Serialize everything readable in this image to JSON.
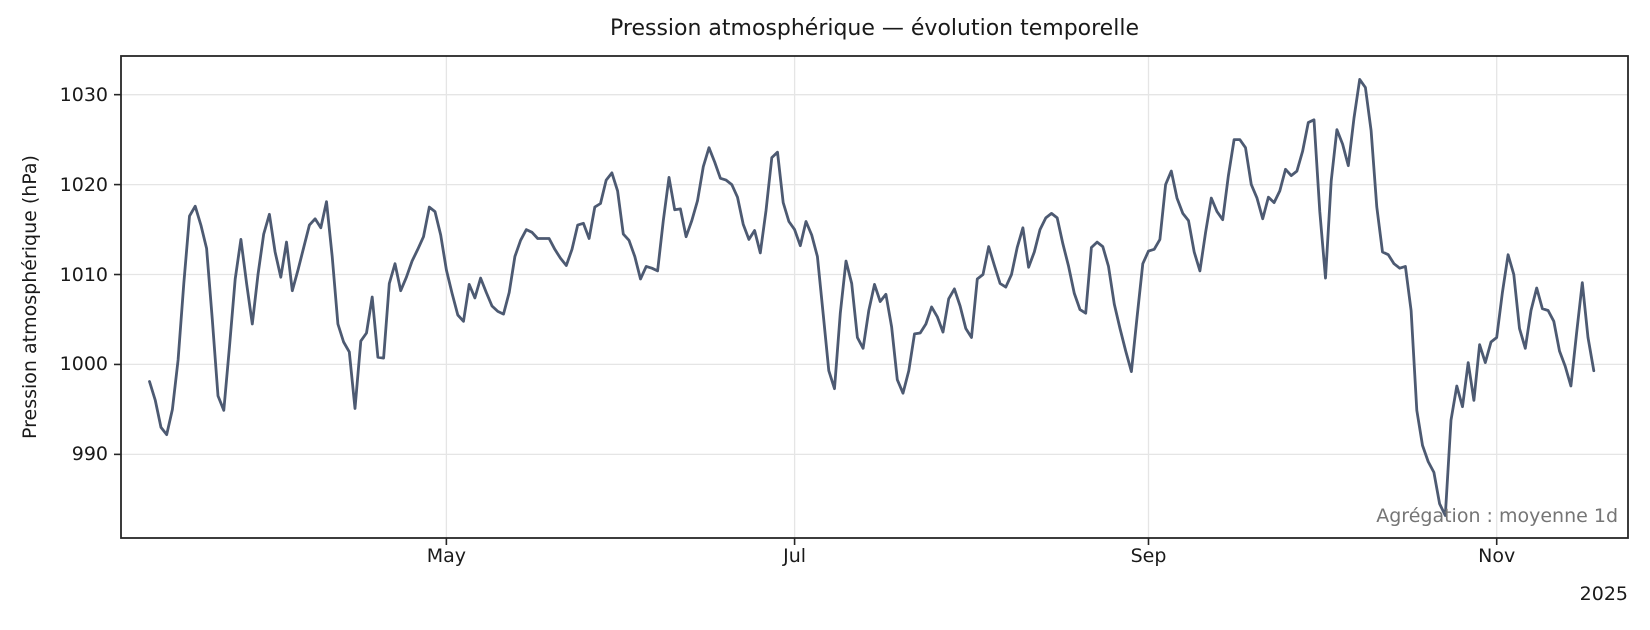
{
  "chart_data": {
    "type": "line",
    "title": "Pression atmosphérique — évolution temporelle",
    "ylabel": "Pression atmosphérique (hPa)",
    "xlabel": "",
    "annotation": "Agrégation : moyenne 1d",
    "year_label": "2025",
    "grid": true,
    "legend": false,
    "x_domain": [
      "2025-03-05",
      "2025-11-24"
    ],
    "y_domain": [
      980.7,
      1034.3
    ],
    "x_ticks": [
      {
        "label": "May",
        "date": "2025-05-01"
      },
      {
        "label": "Jul",
        "date": "2025-07-01"
      },
      {
        "label": "Sep",
        "date": "2025-09-01"
      },
      {
        "label": "Nov",
        "date": "2025-11-01"
      }
    ],
    "y_ticks": [
      990,
      1000,
      1010,
      1020,
      1030
    ],
    "colors": {
      "line": "#4d5a72",
      "grid": "#e5e5e5",
      "spine": "#262626",
      "tick_label": "#262626",
      "annotation": "#757575",
      "background": "#ffffff"
    },
    "series": [
      {
        "name": "Pression atmosphérique (moyenne 1d)",
        "unit": "hPa",
        "start_date": "2025-03-10",
        "end_date": "2025-11-18",
        "step_days": 1,
        "values": [
          998.1,
          996.0,
          993.0,
          992.2,
          995.0,
          1000.5,
          1009.0,
          1016.5,
          1017.6,
          1015.5,
          1012.9,
          1005.0,
          996.5,
          994.9,
          1002.0,
          1009.5,
          1013.9,
          1009.0,
          1004.5,
          1010.0,
          1014.5,
          1016.7,
          1012.5,
          1009.7,
          1013.6,
          1008.2,
          1010.5,
          1013.0,
          1015.5,
          1016.2,
          1015.2,
          1018.1,
          1012.0,
          1004.5,
          1002.5,
          1001.4,
          995.1,
          1002.6,
          1003.5,
          1007.5,
          1000.8,
          1000.7,
          1009.0,
          1011.2,
          1008.2,
          1009.7,
          1011.5,
          1012.8,
          1014.2,
          1017.5,
          1017.0,
          1014.4,
          1010.5,
          1007.9,
          1005.5,
          1004.8,
          1008.9,
          1007.4,
          1009.6,
          1008.0,
          1006.5,
          1005.9,
          1005.6,
          1008.0,
          1012.0,
          1013.8,
          1015.0,
          1014.7,
          1014.0,
          1014.0,
          1014.0,
          1012.8,
          1011.8,
          1011.0,
          1012.8,
          1015.5,
          1015.7,
          1014.0,
          1017.5,
          1017.9,
          1020.5,
          1021.3,
          1019.3,
          1014.5,
          1013.8,
          1012.0,
          1009.5,
          1010.9,
          1010.7,
          1010.4,
          1016.0,
          1020.8,
          1017.2,
          1017.3,
          1014.2,
          1016.0,
          1018.2,
          1022.0,
          1024.1,
          1022.5,
          1020.7,
          1020.5,
          1020.0,
          1018.6,
          1015.6,
          1013.9,
          1014.9,
          1012.4,
          1017.1,
          1023.0,
          1023.6,
          1018.0,
          1015.9,
          1015.0,
          1013.2,
          1015.9,
          1014.4,
          1012.0,
          1005.7,
          999.3,
          997.3,
          1005.7,
          1011.5,
          1009.0,
          1003.0,
          1001.8,
          1006.0,
          1008.9,
          1007.0,
          1007.8,
          1004.2,
          998.3,
          996.8,
          999.3,
          1003.4,
          1003.5,
          1004.5,
          1006.4,
          1005.3,
          1003.6,
          1007.3,
          1008.4,
          1006.5,
          1004.0,
          1003.0,
          1009.5,
          1010.0,
          1013.1,
          1011.0,
          1009.0,
          1008.6,
          1010.0,
          1013.0,
          1015.2,
          1010.8,
          1012.5,
          1015.0,
          1016.3,
          1016.8,
          1016.3,
          1013.4,
          1010.9,
          1007.9,
          1006.1,
          1005.7,
          1013.0,
          1013.6,
          1013.1,
          1010.9,
          1006.7,
          1004.0,
          1001.5,
          999.2,
          1005.3,
          1011.2,
          1012.6,
          1012.8,
          1013.9,
          1020.0,
          1021.5,
          1018.5,
          1016.8,
          1016.0,
          1012.5,
          1010.4,
          1014.7,
          1018.5,
          1017.0,
          1016.1,
          1021.0,
          1025.0,
          1025.0,
          1024.1,
          1020.0,
          1018.5,
          1016.2,
          1018.6,
          1018.0,
          1019.3,
          1021.7,
          1021.0,
          1021.5,
          1023.7,
          1026.9,
          1027.2,
          1017.0,
          1009.6,
          1020.4,
          1026.1,
          1024.5,
          1022.1,
          1027.4,
          1031.7,
          1030.8,
          1026.0,
          1017.5,
          1012.5,
          1012.2,
          1011.2,
          1010.7,
          1010.9,
          1006.0,
          994.9,
          991.0,
          989.2,
          988.0,
          984.5,
          983.2,
          993.8,
          997.6,
          995.3,
          1000.2,
          996.0,
          1002.2,
          1000.2,
          1002.5,
          1003.0,
          1008.0,
          1012.2,
          1010.0,
          1004.0,
          1001.8,
          1006.0,
          1008.5,
          1006.2,
          1006.0,
          1004.8,
          1001.5,
          999.8,
          997.6,
          1003.5,
          1009.1,
          1003.0,
          999.3
        ]
      }
    ]
  }
}
